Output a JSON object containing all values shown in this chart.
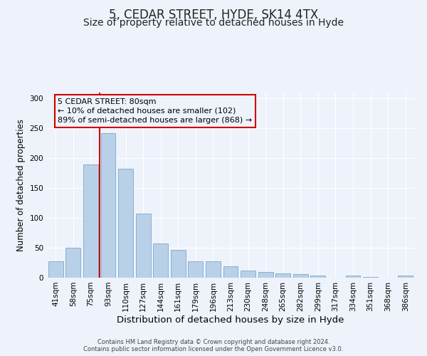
{
  "title": "5, CEDAR STREET, HYDE, SK14 4TX",
  "subtitle": "Size of property relative to detached houses in Hyde",
  "xlabel": "Distribution of detached houses by size in Hyde",
  "ylabel": "Number of detached properties",
  "categories": [
    "41sqm",
    "58sqm",
    "75sqm",
    "93sqm",
    "110sqm",
    "127sqm",
    "144sqm",
    "161sqm",
    "179sqm",
    "196sqm",
    "213sqm",
    "230sqm",
    "248sqm",
    "265sqm",
    "282sqm",
    "299sqm",
    "317sqm",
    "334sqm",
    "351sqm",
    "368sqm",
    "386sqm"
  ],
  "values": [
    28,
    50,
    190,
    242,
    182,
    107,
    57,
    46,
    28,
    28,
    19,
    12,
    9,
    7,
    6,
    3,
    0,
    3,
    1,
    0,
    3
  ],
  "bar_color": "#b8d0e8",
  "bar_edge_color": "#7aa8cc",
  "vline_color": "#cc0000",
  "annotation_box_text": "5 CEDAR STREET: 80sqm\n← 10% of detached houses are smaller (102)\n89% of semi-detached houses are larger (868) →",
  "ylim": [
    0,
    310
  ],
  "yticks": [
    0,
    50,
    100,
    150,
    200,
    250,
    300
  ],
  "bg_color": "#eef2fa",
  "grid_color": "#ffffff",
  "footer_line1": "Contains HM Land Registry data © Crown copyright and database right 2024.",
  "footer_line2": "Contains public sector information licensed under the Open Government Licence v3.0.",
  "title_fontsize": 12,
  "subtitle_fontsize": 10,
  "xlabel_fontsize": 9.5,
  "ylabel_fontsize": 8.5,
  "tick_fontsize": 7.5,
  "ann_fontsize": 8.0,
  "footer_fontsize": 6.0
}
